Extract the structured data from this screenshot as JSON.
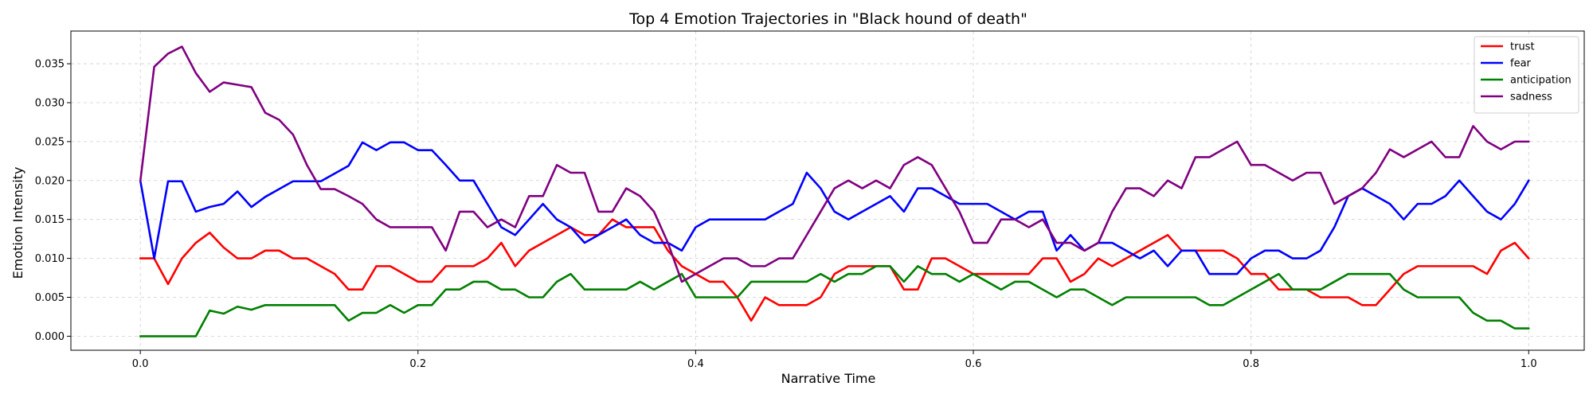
{
  "chart_data": {
    "type": "line",
    "title": "Top 4 Emotion Trajectories in \"Black hound of death\"",
    "xlabel": "Narrative Time",
    "ylabel": "Emotion Intensity",
    "xlim": [
      -0.05,
      1.04
    ],
    "ylim": [
      -0.0018,
      0.0392
    ],
    "xticks": [
      0.0,
      0.2,
      0.4,
      0.6,
      0.8,
      1.0
    ],
    "xtick_labels": [
      "0.0",
      "0.2",
      "0.4",
      "0.6",
      "0.8",
      "1.0"
    ],
    "yticks": [
      0.0,
      0.005,
      0.01,
      0.015,
      0.02,
      0.025,
      0.03,
      0.035
    ],
    "ytick_labels": [
      "0.000",
      "0.005",
      "0.010",
      "0.015",
      "0.020",
      "0.025",
      "0.030",
      "0.035"
    ],
    "grid": true,
    "legend_position": "top-right",
    "x_start": 0.0,
    "x_step": 0.01,
    "series": [
      {
        "name": "trust",
        "color": "#ff0000",
        "values": [
          0.01,
          0.01,
          0.0067,
          0.01,
          0.012,
          0.0133,
          0.0114,
          0.01,
          0.01,
          0.011,
          0.011,
          0.01,
          0.01,
          0.009,
          0.008,
          0.006,
          0.006,
          0.009,
          0.009,
          0.008,
          0.007,
          0.007,
          0.009,
          0.009,
          0.009,
          0.01,
          0.012,
          0.009,
          0.011,
          0.012,
          0.013,
          0.014,
          0.013,
          0.013,
          0.015,
          0.014,
          0.014,
          0.014,
          0.011,
          0.009,
          0.008,
          0.007,
          0.007,
          0.005,
          0.002,
          0.005,
          0.004,
          0.004,
          0.004,
          0.005,
          0.008,
          0.009,
          0.009,
          0.009,
          0.009,
          0.006,
          0.006,
          0.01,
          0.01,
          0.009,
          0.008,
          0.008,
          0.008,
          0.008,
          0.008,
          0.01,
          0.01,
          0.007,
          0.008,
          0.01,
          0.009,
          0.01,
          0.011,
          0.012,
          0.013,
          0.011,
          0.011,
          0.011,
          0.011,
          0.01,
          0.008,
          0.008,
          0.006,
          0.006,
          0.006,
          0.005,
          0.005,
          0.005,
          0.004,
          0.004,
          0.006,
          0.008,
          0.009,
          0.009,
          0.009,
          0.009,
          0.009,
          0.008,
          0.011,
          0.012,
          0.01
        ]
      },
      {
        "name": "fear",
        "color": "#0000ff",
        "values": [
          0.02,
          0.01,
          0.0199,
          0.0199,
          0.016,
          0.0166,
          0.017,
          0.0186,
          0.0166,
          0.0179,
          0.0189,
          0.0199,
          0.0199,
          0.0199,
          0.0209,
          0.0219,
          0.0249,
          0.0239,
          0.0249,
          0.0249,
          0.0239,
          0.0239,
          0.022,
          0.02,
          0.02,
          0.017,
          0.014,
          0.013,
          0.015,
          0.017,
          0.015,
          0.014,
          0.012,
          0.013,
          0.014,
          0.015,
          0.013,
          0.012,
          0.012,
          0.011,
          0.014,
          0.015,
          0.015,
          0.015,
          0.015,
          0.015,
          0.016,
          0.017,
          0.021,
          0.019,
          0.016,
          0.015,
          0.016,
          0.017,
          0.018,
          0.016,
          0.019,
          0.019,
          0.018,
          0.017,
          0.017,
          0.017,
          0.016,
          0.015,
          0.016,
          0.016,
          0.011,
          0.013,
          0.011,
          0.012,
          0.012,
          0.011,
          0.01,
          0.011,
          0.009,
          0.011,
          0.011,
          0.008,
          0.008,
          0.008,
          0.01,
          0.011,
          0.011,
          0.01,
          0.01,
          0.011,
          0.014,
          0.018,
          0.019,
          0.018,
          0.017,
          0.015,
          0.017,
          0.017,
          0.018,
          0.02,
          0.018,
          0.016,
          0.015,
          0.017,
          0.02
        ]
      },
      {
        "name": "anticipation",
        "color": "#008000",
        "values": [
          0.0,
          0.0,
          0.0,
          0.0,
          0.0,
          0.0033,
          0.0029,
          0.0038,
          0.0034,
          0.004,
          0.004,
          0.004,
          0.004,
          0.004,
          0.004,
          0.002,
          0.003,
          0.003,
          0.004,
          0.003,
          0.004,
          0.004,
          0.006,
          0.006,
          0.007,
          0.007,
          0.006,
          0.006,
          0.005,
          0.005,
          0.007,
          0.008,
          0.006,
          0.006,
          0.006,
          0.006,
          0.007,
          0.006,
          0.007,
          0.008,
          0.005,
          0.005,
          0.005,
          0.005,
          0.007,
          0.007,
          0.007,
          0.007,
          0.007,
          0.008,
          0.007,
          0.008,
          0.008,
          0.009,
          0.009,
          0.007,
          0.009,
          0.008,
          0.008,
          0.007,
          0.008,
          0.007,
          0.006,
          0.007,
          0.007,
          0.006,
          0.005,
          0.006,
          0.006,
          0.005,
          0.004,
          0.005,
          0.005,
          0.005,
          0.005,
          0.005,
          0.005,
          0.004,
          0.004,
          0.005,
          0.006,
          0.007,
          0.008,
          0.006,
          0.006,
          0.006,
          0.007,
          0.008,
          0.008,
          0.008,
          0.008,
          0.006,
          0.005,
          0.005,
          0.005,
          0.005,
          0.003,
          0.002,
          0.002,
          0.001,
          0.001
        ]
      },
      {
        "name": "sadness",
        "color": "#800080",
        "values": [
          0.0199,
          0.0346,
          0.0363,
          0.0372,
          0.0338,
          0.0314,
          0.0326,
          0.0323,
          0.032,
          0.0287,
          0.0278,
          0.0259,
          0.022,
          0.0189,
          0.0189,
          0.018,
          0.017,
          0.015,
          0.014,
          0.014,
          0.014,
          0.014,
          0.011,
          0.016,
          0.016,
          0.014,
          0.015,
          0.014,
          0.018,
          0.018,
          0.022,
          0.021,
          0.021,
          0.016,
          0.016,
          0.019,
          0.018,
          0.016,
          0.012,
          0.007,
          0.008,
          0.009,
          0.01,
          0.01,
          0.009,
          0.009,
          0.01,
          0.01,
          0.013,
          0.016,
          0.019,
          0.02,
          0.019,
          0.02,
          0.019,
          0.022,
          0.023,
          0.022,
          0.019,
          0.016,
          0.012,
          0.012,
          0.015,
          0.015,
          0.014,
          0.015,
          0.012,
          0.012,
          0.011,
          0.012,
          0.016,
          0.019,
          0.019,
          0.018,
          0.02,
          0.019,
          0.023,
          0.023,
          0.024,
          0.025,
          0.022,
          0.022,
          0.021,
          0.02,
          0.021,
          0.021,
          0.017,
          0.018,
          0.019,
          0.021,
          0.024,
          0.023,
          0.024,
          0.025,
          0.023,
          0.023,
          0.027,
          0.025,
          0.024,
          0.025,
          0.025
        ]
      }
    ]
  }
}
